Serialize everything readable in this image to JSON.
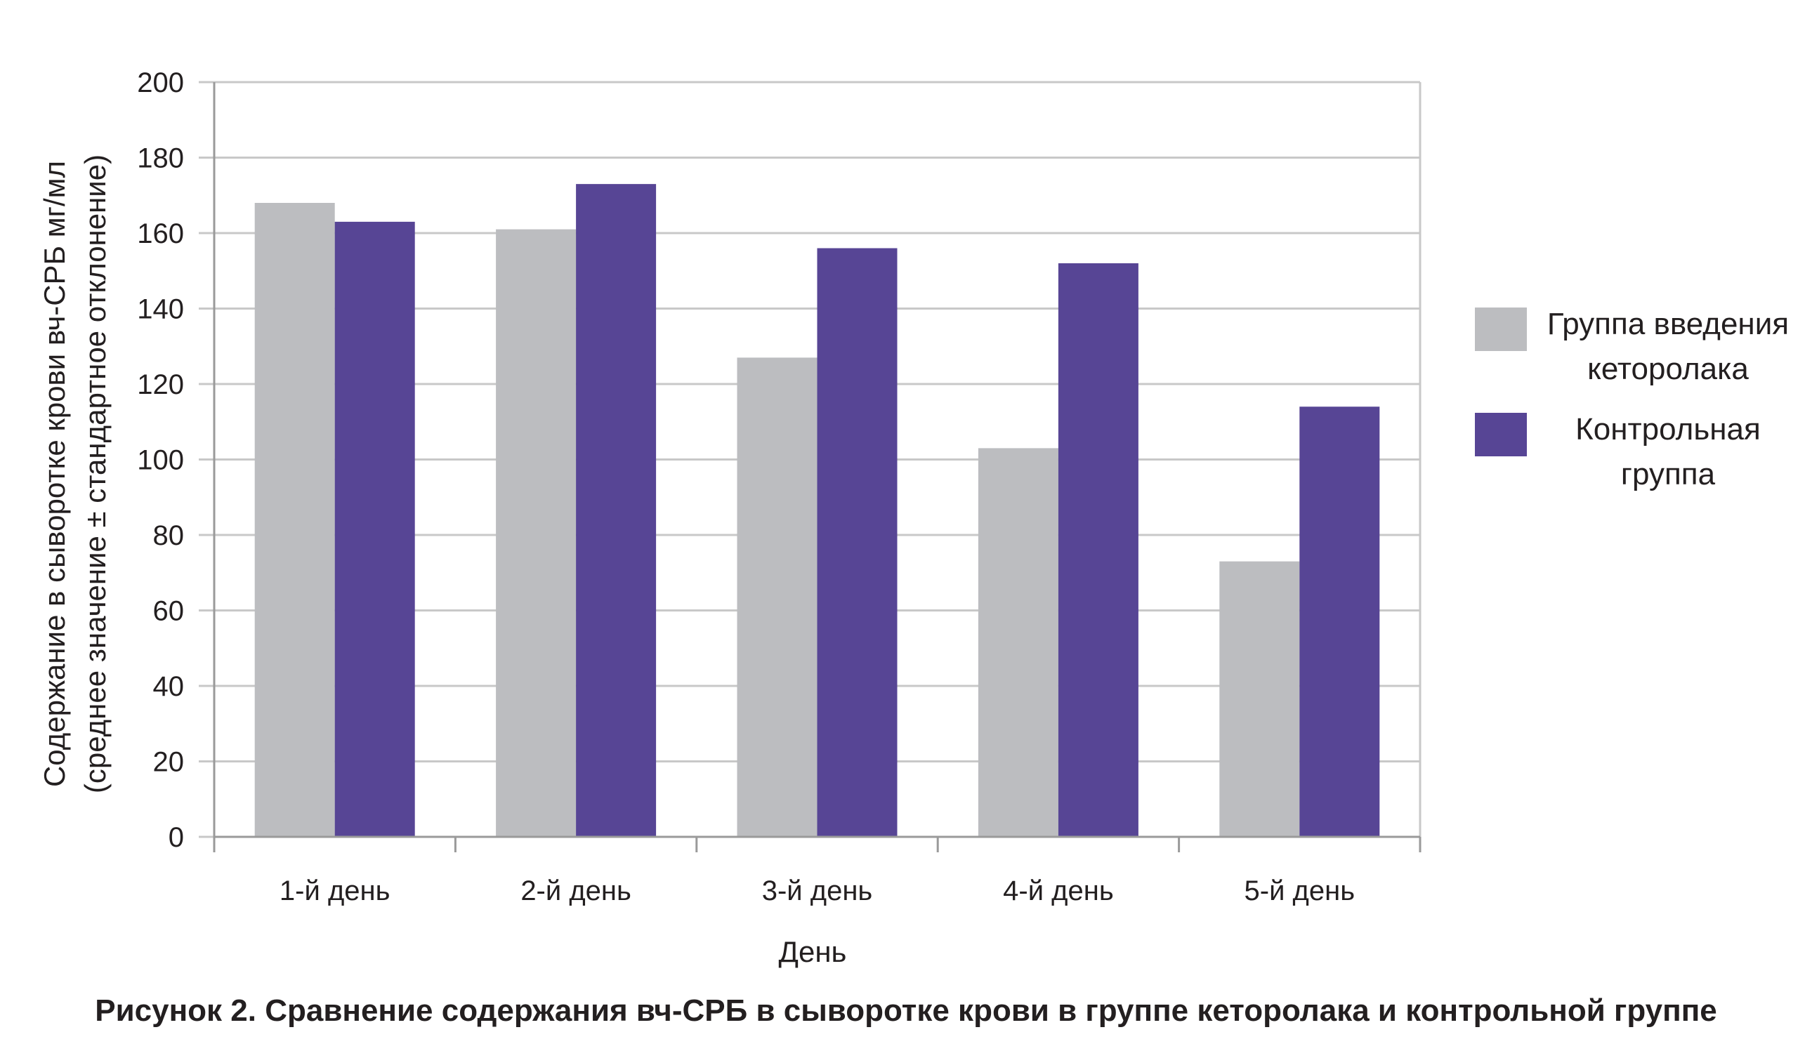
{
  "chart_data": {
    "type": "bar",
    "categories": [
      "1-й день",
      "2-й день",
      "3-й день",
      "4-й день",
      "5-й день"
    ],
    "series": [
      {
        "name": "Группа введения кеторолака",
        "values": [
          168,
          161,
          127,
          103,
          73
        ],
        "color": "#bcbdc0"
      },
      {
        "name": "Контрольная группа",
        "values": [
          163,
          173,
          156,
          152,
          114
        ],
        "color": "#574595"
      }
    ],
    "title": "Рисунок 2. Сравнение содержания вч-СРБ в сыворотке крови в группе кеторолака и контрольной группе",
    "xlabel": "День",
    "ylabel_line1": "Содержание в сыворотке крови вч-СРБ мг/мл",
    "ylabel_line2": "(среднее значение ± стандартное отклонение)",
    "ylim": [
      0,
      200
    ],
    "yticks": [
      0,
      20,
      40,
      60,
      80,
      100,
      120,
      140,
      160,
      180,
      200
    ],
    "grid": true,
    "legend_position": "right"
  },
  "legend": {
    "items": [
      {
        "line1": "Группа введения",
        "line2": "кеторолака"
      },
      {
        "line1": "Контрольная",
        "line2": "группа"
      }
    ]
  },
  "colors": {
    "gridline": "#c8c8c8",
    "axis": "#9a9a9a",
    "text": "#231f20"
  }
}
